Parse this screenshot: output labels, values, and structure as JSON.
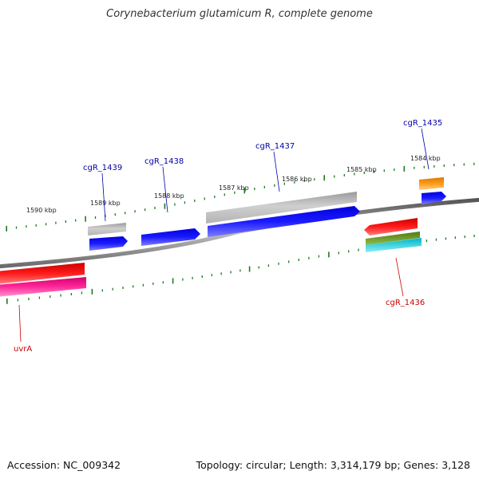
{
  "header": {
    "title": "Corynebacterium glutamicum R, complete genome"
  },
  "footer": {
    "accession": "Accession: NC_009342",
    "topology": "Topology: circular; Length: 3,314,179 bp; Genes: 3,128"
  },
  "colors": {
    "backbone": "#7a7a7a",
    "tick": "#1f7a1f",
    "gene_label_default": "#0000aa",
    "gene_label_rna": "#cc0000"
  },
  "ticks": {
    "major_labels": [
      "1590 kbp",
      "1589 kbp",
      "1588 kbp",
      "1587 kbp",
      "1586 kbp",
      "1585 kbp",
      "1584 kbp"
    ]
  },
  "genes": [
    {
      "label": "cgR_1439",
      "color": "#0000aa"
    },
    {
      "label": "cgR_1438",
      "color": "#0000aa"
    },
    {
      "label": "cgR_1437",
      "color": "#0000aa"
    },
    {
      "label": "cgR_1435",
      "color": "#0000aa"
    },
    {
      "label": "cgR_1436",
      "color": "#cc0000"
    },
    {
      "label": "uvrA",
      "color": "#cc0000"
    }
  ]
}
